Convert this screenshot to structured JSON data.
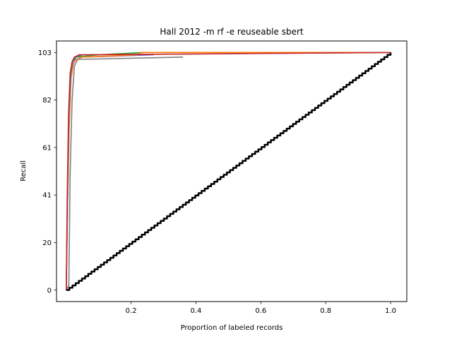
{
  "chart_data": {
    "type": "line",
    "title": "Hall 2012 -m rf -e reuseable sbert",
    "xlabel": "Proportion of labeled records",
    "ylabel": "Recall",
    "xlim": [
      -0.03,
      1.05
    ],
    "ylim": [
      -5,
      108
    ],
    "x_ticks": [
      {
        "value": 0.2,
        "label": "0.2"
      },
      {
        "value": 0.4,
        "label": "0.4"
      },
      {
        "value": 0.6,
        "label": "0.6"
      },
      {
        "value": 0.8,
        "label": "0.8"
      },
      {
        "value": 1.0,
        "label": "1.0"
      }
    ],
    "y_ticks": [
      {
        "value": 0,
        "label": "0"
      },
      {
        "value": 20.6,
        "label": "20"
      },
      {
        "value": 41.2,
        "label": "41"
      },
      {
        "value": 61.8,
        "label": "61"
      },
      {
        "value": 82.4,
        "label": "82"
      },
      {
        "value": 103,
        "label": "103"
      }
    ],
    "grid": false,
    "series": [
      {
        "color": "#7f7f7f",
        "x": [
          0.0,
          0.008,
          0.012,
          0.018,
          0.025,
          0.035,
          0.36
        ],
        "y": [
          0,
          2,
          50,
          82,
          97,
          100,
          101
        ]
      },
      {
        "color": "#e377c2",
        "x": [
          0.0,
          0.004,
          0.008,
          0.014,
          0.02,
          0.03,
          0.05,
          0.26
        ],
        "y": [
          0,
          35,
          70,
          93,
          99,
          100,
          101,
          102
        ]
      },
      {
        "color": "#2ca02c",
        "x": [
          0.0,
          0.004,
          0.008,
          0.014,
          0.02,
          0.03,
          0.1,
          0.24
        ],
        "y": [
          0,
          40,
          75,
          94,
          99,
          101,
          102,
          103
        ]
      },
      {
        "color": "#9467bd",
        "x": [
          0.0,
          0.004,
          0.008,
          0.014,
          0.02,
          0.03,
          0.05,
          0.27
        ],
        "y": [
          0,
          38,
          72,
          93,
          99,
          100,
          101,
          102
        ]
      },
      {
        "color": "#ff7f0e",
        "x": [
          0.0,
          0.004,
          0.009,
          0.015,
          0.022,
          0.03,
          0.05,
          0.22,
          0.23,
          1.0
        ],
        "y": [
          0,
          36,
          70,
          92,
          98,
          100,
          101,
          102,
          103,
          103
        ]
      },
      {
        "color": "#1f77b4",
        "x": [
          0.0,
          0.004,
          0.008,
          0.014,
          0.02,
          0.03,
          0.05,
          1.0
        ],
        "y": [
          0,
          40,
          75,
          94,
          99,
          101,
          102,
          103
        ]
      },
      {
        "color": "#d62728",
        "x": [
          0.0,
          0.003,
          0.007,
          0.012,
          0.018,
          0.025,
          0.04,
          1.0
        ],
        "y": [
          0,
          40,
          76,
          94,
          99,
          101,
          102,
          103
        ]
      },
      {
        "color": "#000000",
        "stepped": true,
        "width": 2.5,
        "x": [
          0.0,
          1.0
        ],
        "y": [
          0,
          103
        ]
      }
    ]
  }
}
